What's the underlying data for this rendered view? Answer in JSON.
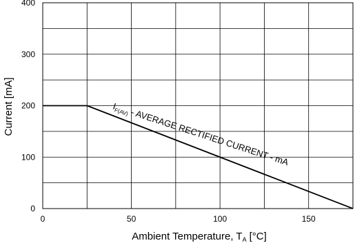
{
  "chart_data": {
    "type": "line",
    "title": "",
    "xlabel": "Ambient Temperature, T",
    "xlabel_sub": "A",
    "xlabel_unit": "[°C]",
    "ylabel": "Current [mA]",
    "xlim": [
      0,
      175
    ],
    "ylim": [
      0,
      400
    ],
    "x_ticks": [
      0,
      50,
      100,
      150
    ],
    "y_ticks": [
      0,
      100,
      200,
      300,
      400
    ],
    "x_grid_step": 25,
    "y_grid_step": 50,
    "grid": true,
    "series": [
      {
        "name": "I_F(AV) - AVERAGE RECTIFIED CURRENT - mA",
        "x": [
          0,
          25,
          175
        ],
        "y": [
          200,
          200,
          0
        ]
      }
    ],
    "annotation": {
      "main": "I",
      "sub": "F(AV)",
      "rest": " - AVERAGE RECTIFIED CURRENT - mA"
    }
  }
}
